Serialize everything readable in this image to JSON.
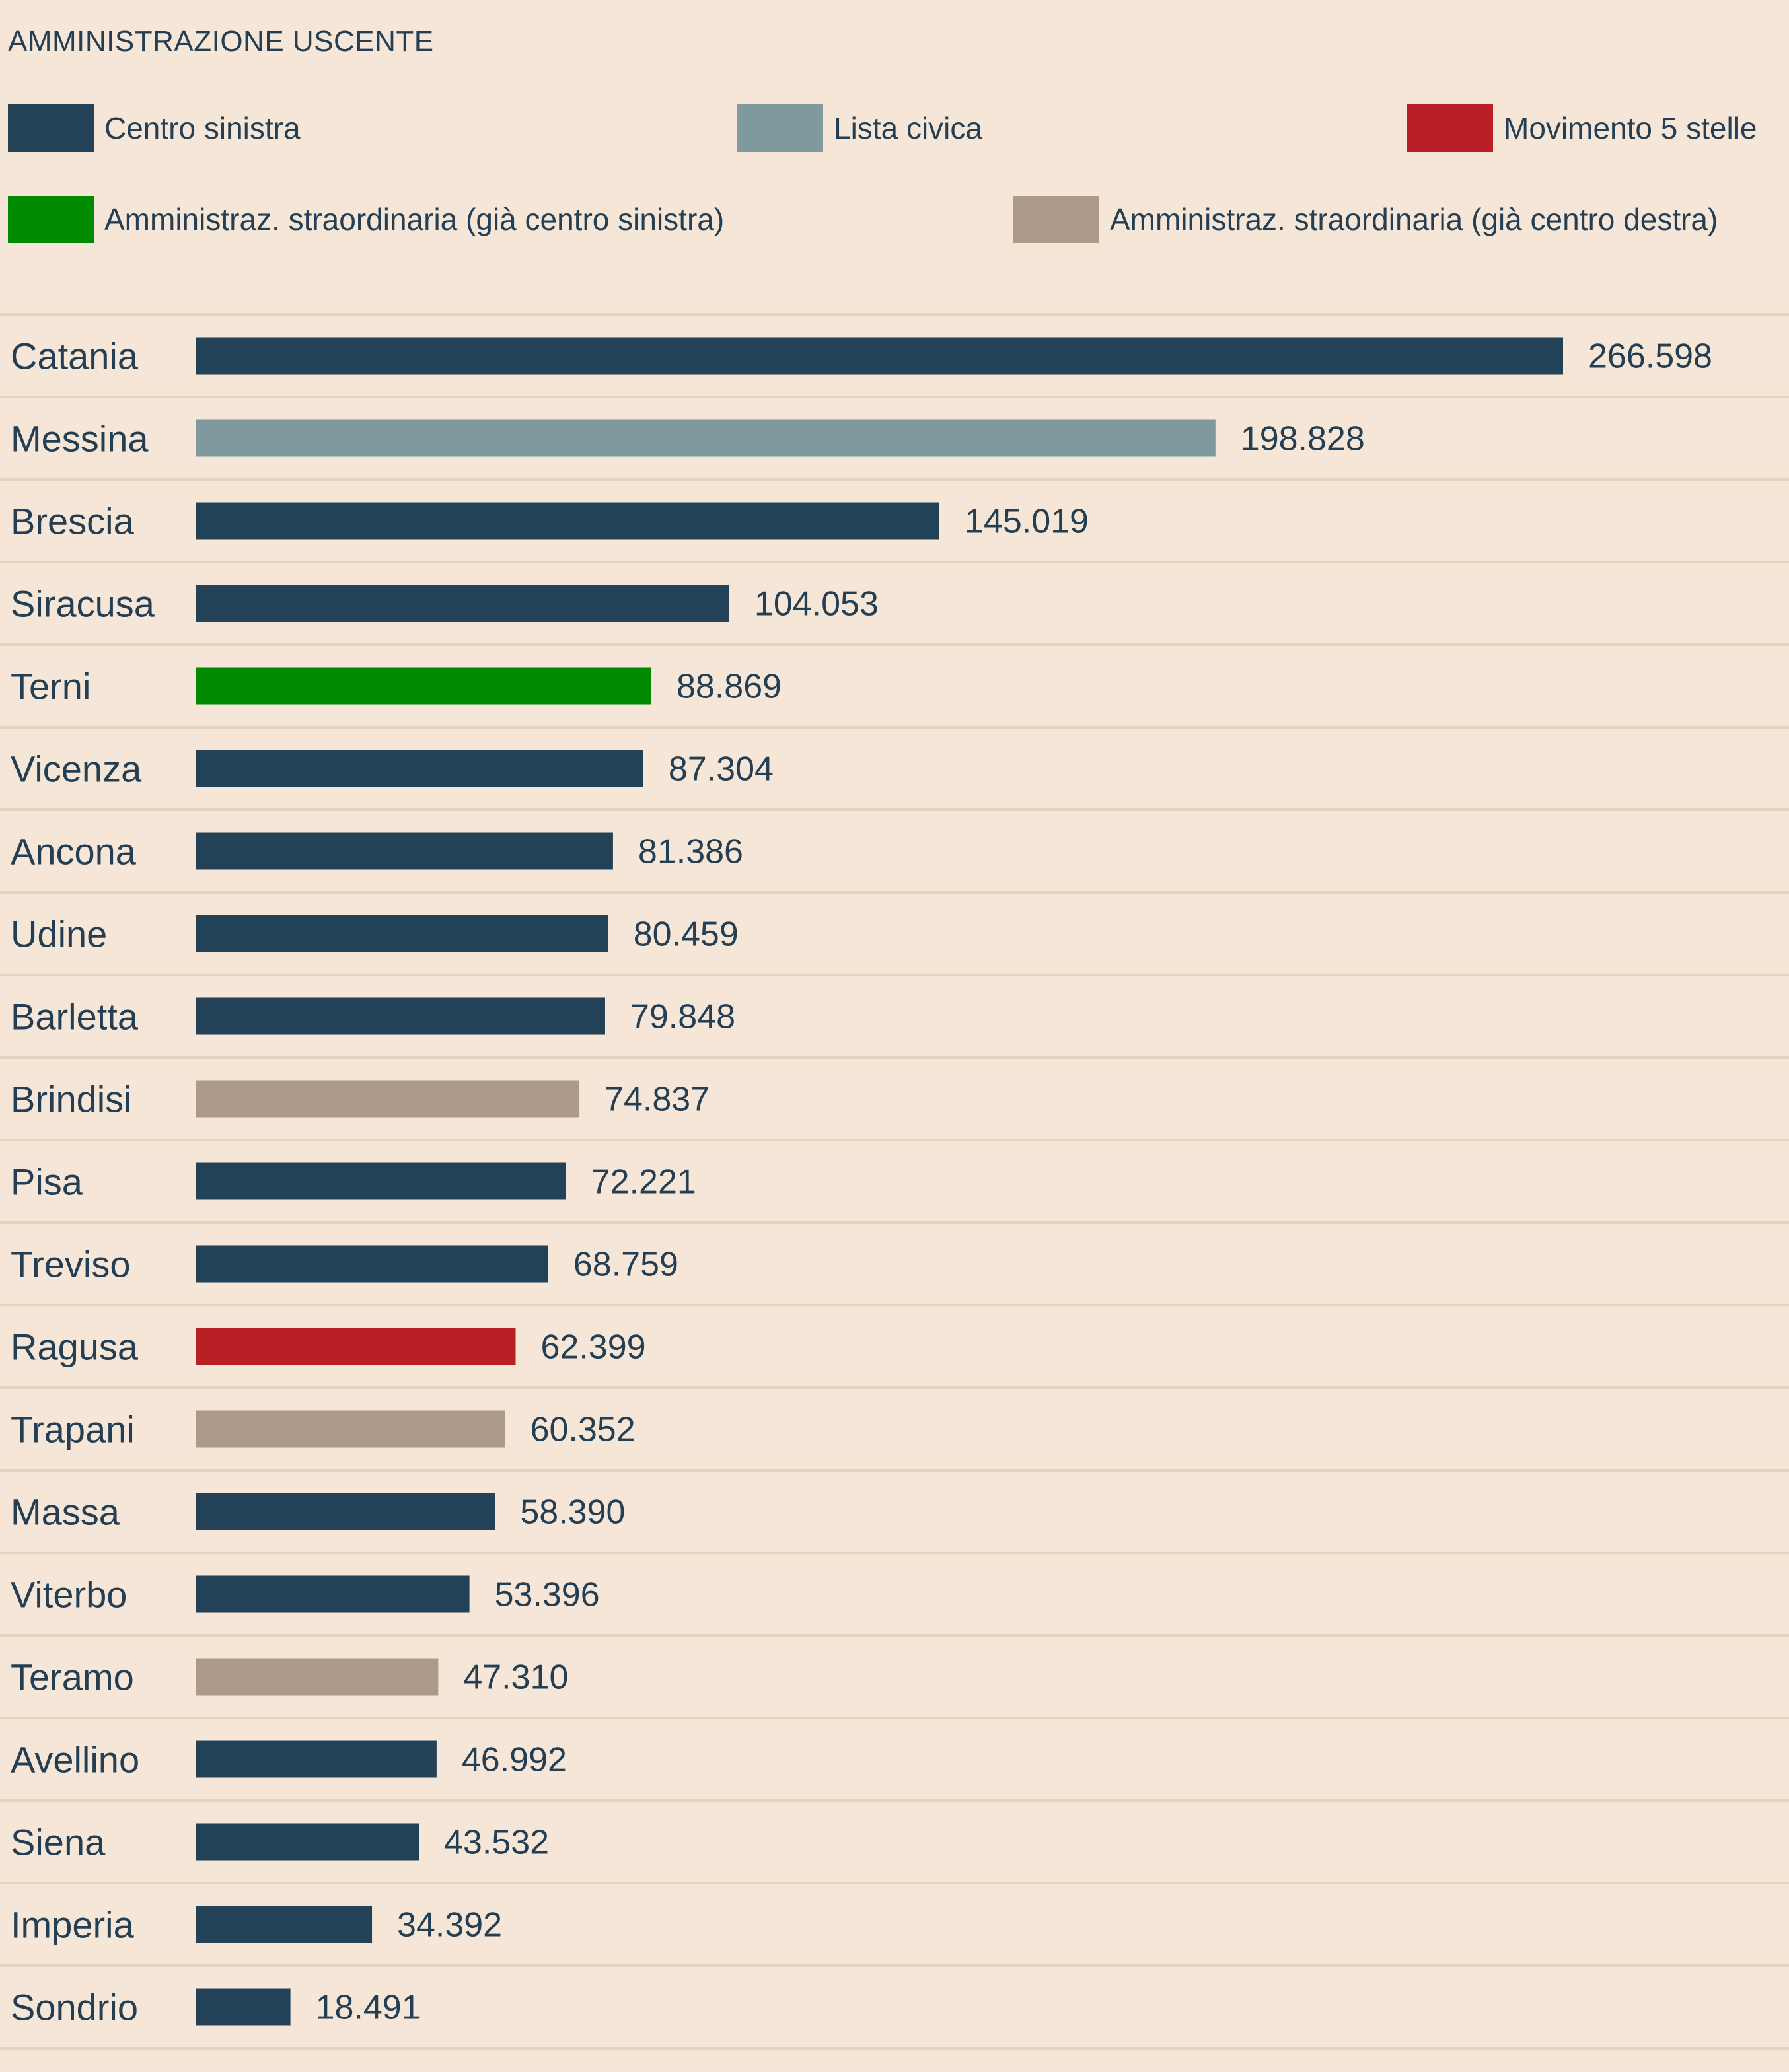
{
  "chart_data": {
    "type": "bar",
    "orientation": "horizontal",
    "title": "AMMINISTRAZIONE USCENTE",
    "legend": [
      {
        "name": "Centro sinistra",
        "color": "#244257"
      },
      {
        "name": "Lista civica",
        "color": "#7f999f"
      },
      {
        "name": "Movimento 5 stelle",
        "color": "#b82025"
      },
      {
        "name": "Amministraz. straordinaria (già centro sinistra)",
        "color": "#008a00"
      },
      {
        "name": "Amministraz. straordinaria (già centro destra)",
        "color": "#ad9a89"
      }
    ],
    "categories": [
      "Catania",
      "Messina",
      "Brescia",
      "Siracusa",
      "Terni",
      "Vicenza",
      "Ancona",
      "Udine",
      "Barletta",
      "Brindisi",
      "Pisa",
      "Treviso",
      "Ragusa",
      "Trapani",
      "Massa",
      "Viterbo",
      "Teramo",
      "Avellino",
      "Siena",
      "Imperia",
      "Sondrio"
    ],
    "values": [
      266598,
      198828,
      145019,
      104053,
      88869,
      87304,
      81386,
      80459,
      79848,
      74837,
      72221,
      68759,
      62399,
      60352,
      58390,
      53396,
      47310,
      46992,
      43532,
      34392,
      18491
    ],
    "value_labels": [
      "266.598",
      "198.828",
      "145.019",
      "104.053",
      "88.869",
      "87.304",
      "81.386",
      "80.459",
      "79.848",
      "74.837",
      "72.221",
      "68.759",
      "62.399",
      "60.352",
      "58.390",
      "53.396",
      "47.310",
      "46.992",
      "43.532",
      "34.392",
      "18.491"
    ],
    "groups": [
      0,
      1,
      0,
      0,
      3,
      0,
      0,
      0,
      0,
      4,
      0,
      0,
      2,
      4,
      0,
      0,
      4,
      0,
      0,
      0,
      0
    ],
    "xlim": [
      0,
      266598
    ],
    "grid": true,
    "legend_position": "top"
  }
}
